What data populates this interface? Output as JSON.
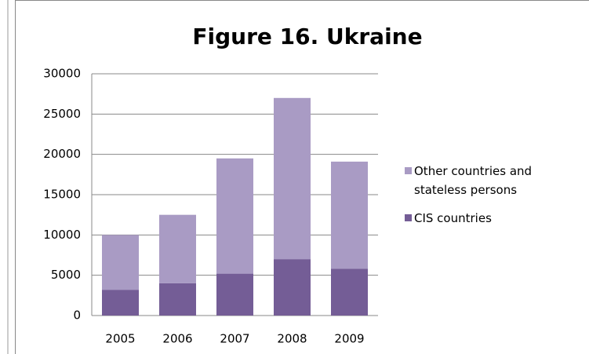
{
  "chart_data": {
    "type": "stacked_bar",
    "title": "Figure 16.  Ukraine",
    "categories": [
      "2005",
      "2006",
      "2007",
      "2008",
      "2009"
    ],
    "series": [
      {
        "name": "CIS  countries",
        "color": "#745d96",
        "values": [
          3200,
          4000,
          5200,
          7000,
          5800
        ]
      },
      {
        "name": "Other countries and stateless persons",
        "color": "#a99bc4",
        "values": [
          6800,
          8500,
          14300,
          20000,
          13300
        ]
      }
    ],
    "ylim": [
      0,
      30000
    ],
    "yticks": [
      0,
      5000,
      10000,
      15000,
      20000,
      25000,
      30000
    ],
    "grid": true,
    "legend": "right"
  }
}
